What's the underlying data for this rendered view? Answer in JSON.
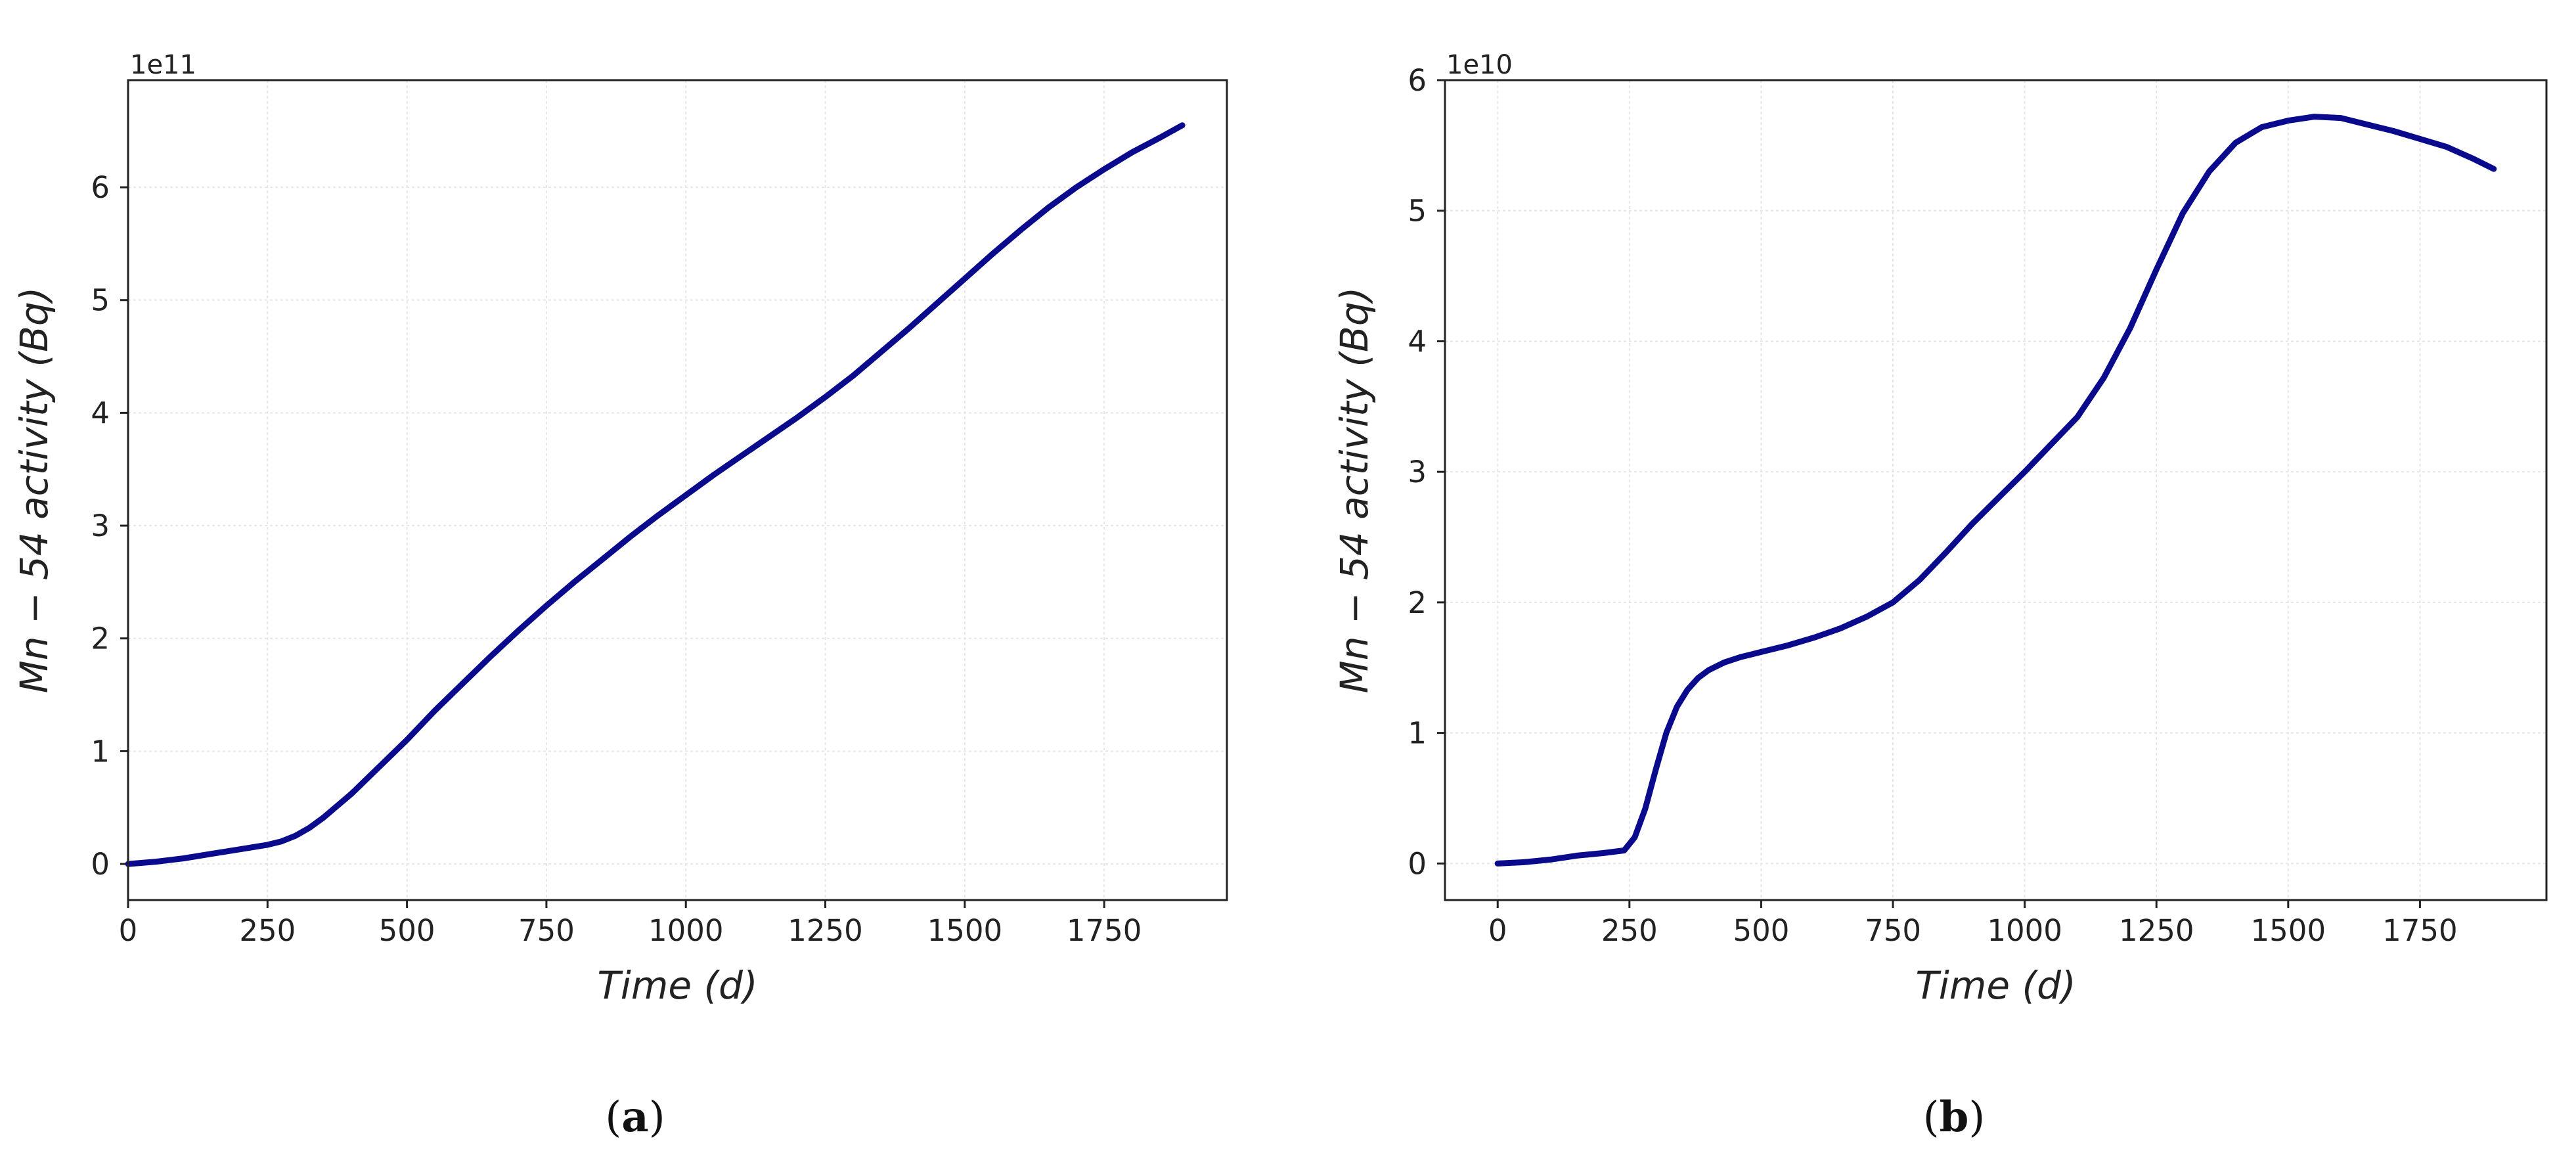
{
  "chart_data": [
    {
      "type": "line",
      "panel_label": "a",
      "offset_text": "1e11",
      "xlabel": "Time (d)",
      "ylabel": "Mn − 54 activity (Bq)",
      "xlim": [
        0,
        1970
      ],
      "ylim": [
        -0.32,
        6.95
      ],
      "x_ticks": [
        0,
        250,
        500,
        750,
        1000,
        1250,
        1500,
        1750
      ],
      "x_tick_labels": [
        "0",
        "250",
        "500",
        "750",
        "1000",
        "1250",
        "1500",
        "1750"
      ],
      "y_ticks": [
        0,
        1,
        2,
        3,
        4,
        5,
        6
      ],
      "y_tick_labels": [
        "0",
        "1",
        "2",
        "3",
        "4",
        "5",
        "6"
      ],
      "grid": true,
      "series": [
        {
          "color": "#0a0a8c",
          "x": [
            0,
            50,
            100,
            150,
            200,
            250,
            275,
            300,
            325,
            350,
            400,
            450,
            500,
            550,
            600,
            650,
            700,
            750,
            800,
            850,
            900,
            950,
            1000,
            1050,
            1100,
            1150,
            1200,
            1250,
            1300,
            1350,
            1400,
            1450,
            1500,
            1550,
            1600,
            1650,
            1700,
            1750,
            1800,
            1850,
            1890
          ],
          "y": [
            0,
            0.02,
            0.05,
            0.09,
            0.13,
            0.17,
            0.2,
            0.25,
            0.32,
            0.41,
            0.62,
            0.86,
            1.1,
            1.36,
            1.6,
            1.84,
            2.07,
            2.29,
            2.5,
            2.7,
            2.9,
            3.09,
            3.27,
            3.45,
            3.62,
            3.79,
            3.96,
            4.14,
            4.33,
            4.54,
            4.75,
            4.97,
            5.19,
            5.41,
            5.62,
            5.82,
            6.0,
            6.16,
            6.31,
            6.44,
            6.55
          ]
        }
      ]
    },
    {
      "type": "line",
      "panel_label": "b",
      "offset_text": "1e10",
      "xlabel": "Time (d)",
      "ylabel": "Mn − 54 activity (Bq)",
      "xlim": [
        -100,
        1990
      ],
      "ylim": [
        -0.28,
        6.0
      ],
      "x_ticks": [
        0,
        250,
        500,
        750,
        1000,
        1250,
        1500,
        1750
      ],
      "x_tick_labels": [
        "0",
        "250",
        "500",
        "750",
        "1000",
        "1250",
        "1500",
        "1750"
      ],
      "y_ticks": [
        0,
        1,
        2,
        3,
        4,
        5,
        6
      ],
      "y_tick_labels": [
        "0",
        "1",
        "2",
        "3",
        "4",
        "5",
        "6"
      ],
      "grid": true,
      "series": [
        {
          "color": "#0a0a8c",
          "x": [
            0,
            50,
            100,
            150,
            200,
            240,
            260,
            280,
            300,
            320,
            340,
            360,
            380,
            400,
            430,
            460,
            500,
            550,
            600,
            650,
            700,
            750,
            800,
            850,
            900,
            950,
            1000,
            1050,
            1100,
            1150,
            1200,
            1250,
            1300,
            1350,
            1400,
            1450,
            1500,
            1550,
            1600,
            1650,
            1700,
            1750,
            1800,
            1850,
            1890
          ],
          "y": [
            0,
            0.01,
            0.03,
            0.06,
            0.08,
            0.1,
            0.2,
            0.42,
            0.72,
            1.0,
            1.2,
            1.33,
            1.42,
            1.48,
            1.54,
            1.58,
            1.62,
            1.67,
            1.73,
            1.8,
            1.89,
            2.0,
            2.17,
            2.38,
            2.6,
            2.8,
            3.0,
            3.21,
            3.42,
            3.72,
            4.1,
            4.55,
            4.98,
            5.3,
            5.52,
            5.64,
            5.69,
            5.72,
            5.71,
            5.66,
            5.61,
            5.55,
            5.49,
            5.4,
            5.32
          ]
        }
      ]
    }
  ]
}
